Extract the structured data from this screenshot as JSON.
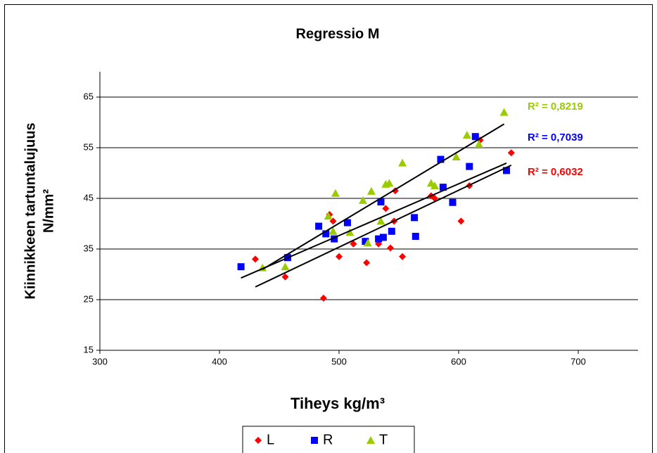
{
  "chart_data": {
    "type": "scatter",
    "title": "Regressio M",
    "x_label": "Tiheys kg/m³",
    "y_label": [
      "Kiinnikkeen tartuntalujuus",
      "N/mm²"
    ],
    "xlim": [
      300,
      750
    ],
    "xticks": [
      300,
      400,
      500,
      600,
      700
    ],
    "ylim": [
      15,
      70
    ],
    "yticks": [
      15,
      25,
      35,
      45,
      55,
      65
    ],
    "grid": true,
    "legend": "bottom",
    "trendline": true,
    "series": [
      {
        "name": "L",
        "color": "#ff0000",
        "marker": "diamond",
        "annotation": "R² = 0,6032",
        "x": [
          430,
          455,
          487,
          492,
          495,
          500,
          512,
          523,
          533,
          539,
          543,
          547,
          546,
          553,
          577,
          580,
          602,
          609,
          618,
          644
        ],
        "values": [
          33,
          29.5,
          25.3,
          41.8,
          40.5,
          33.5,
          36,
          32.3,
          36,
          43,
          35.2,
          46.5,
          40.5,
          33.5,
          45.5,
          45,
          40.5,
          47.5,
          56.5,
          54
        ]
      },
      {
        "name": "R",
        "color": "#0000ff",
        "marker": "square",
        "annotation": "R² = 0,7039",
        "x": [
          418,
          457,
          483,
          489,
          496,
          507,
          522,
          533,
          535,
          537,
          544,
          563,
          564,
          585,
          587,
          595,
          609,
          614,
          640
        ],
        "values": [
          31.5,
          33.3,
          39.5,
          38,
          37,
          40.2,
          36.5,
          37,
          44.3,
          37.3,
          38.5,
          41.2,
          37.5,
          52.7,
          47.2,
          44.2,
          51.3,
          57.2,
          50.5
        ]
      },
      {
        "name": "T",
        "color": "#99cc00",
        "marker": "triangle",
        "annotation": "R² = 0,8219",
        "x": [
          436,
          455,
          491,
          495,
          497,
          509,
          520,
          524,
          527,
          535,
          539,
          542,
          553,
          577,
          580,
          598,
          607,
          617,
          638
        ],
        "values": [
          31.3,
          31.5,
          41.5,
          38.5,
          46,
          38.3,
          44.6,
          36.2,
          46.4,
          40.5,
          47.8,
          48,
          52,
          48,
          47.5,
          53.2,
          57.5,
          55.7,
          62
        ]
      }
    ]
  }
}
